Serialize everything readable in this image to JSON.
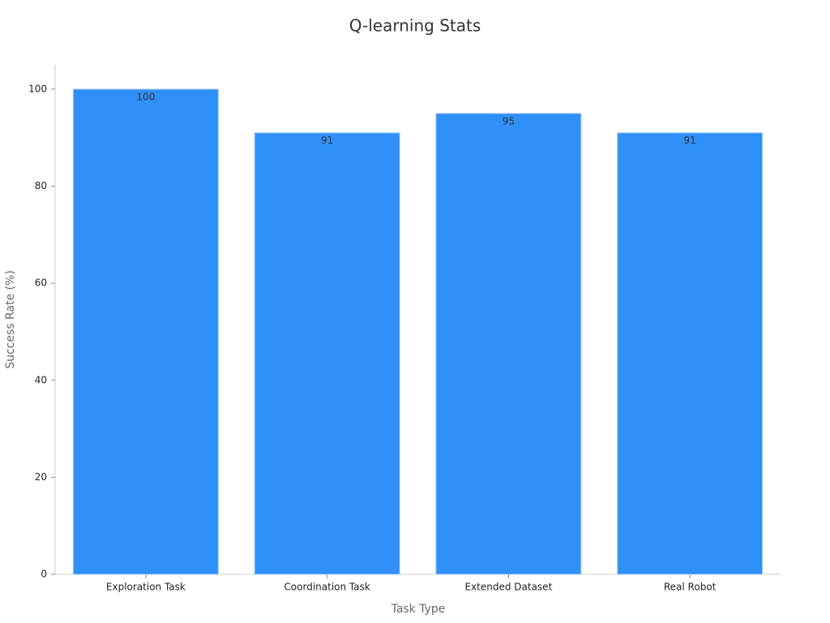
{
  "chart_data": {
    "type": "bar",
    "title": "Q-learning Stats",
    "x_label": "Task Type",
    "y_label": "Success Rate (%)",
    "categories": [
      "Exploration Task",
      "Coordination Task",
      "Extended Dataset",
      "Real Robot"
    ],
    "values": [
      100,
      91,
      95,
      91
    ],
    "color": "#2f90f9",
    "ylim": [
      0,
      105
    ],
    "yticks": [
      0,
      20,
      40,
      60,
      80,
      100
    ],
    "grid": false
  }
}
